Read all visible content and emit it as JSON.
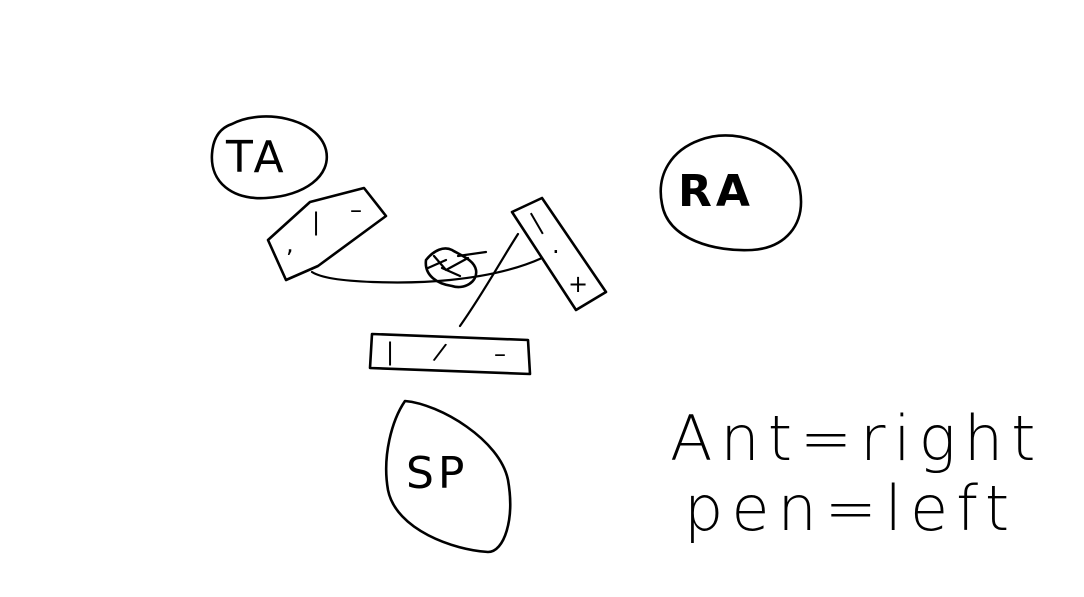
{
  "bubbles": {
    "ta": {
      "label": "TA"
    },
    "ra": {
      "label": "RA"
    },
    "sp": {
      "label": "SP"
    }
  },
  "boxes": {
    "upper_left": {
      "marks": [
        ",",
        "|",
        "–"
      ]
    },
    "vertical": {
      "marks": [
        "|",
        "·",
        "+"
      ]
    },
    "bottom": {
      "marks": [
        "|",
        "/",
        "–"
      ]
    }
  },
  "notes": {
    "line1": "Ant=right",
    "line2": "pen=left"
  },
  "colors": {
    "ink": "#000000",
    "background": "#ffffff"
  }
}
